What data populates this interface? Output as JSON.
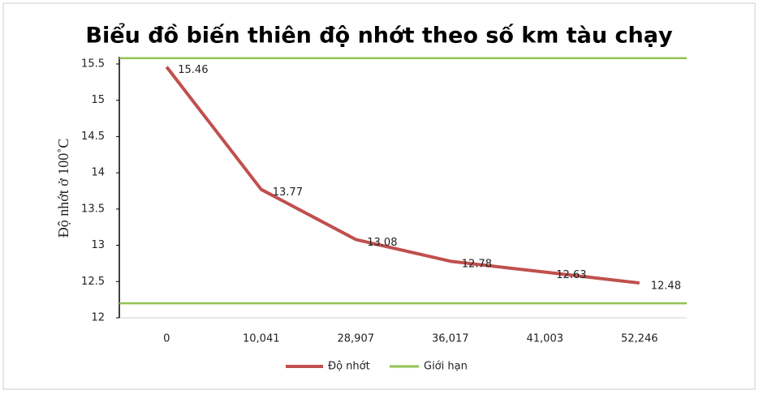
{
  "chart_data": {
    "type": "line",
    "title": "Biểu đồ biến thiên độ nhớt theo số km tàu chạy",
    "y_label": "Độ nhớt ở 100˚C",
    "categories": [
      "0",
      "10,041",
      "28,907",
      "36,017",
      "41,003",
      "52,246"
    ],
    "series": [
      {
        "name": "Độ nhớt",
        "color": "#c0504d",
        "values": [
          15.46,
          13.77,
          13.08,
          12.78,
          12.63,
          12.48
        ]
      }
    ],
    "limits": {
      "name": "Giới hạn",
      "color": "#92c353",
      "values": [
        15.58,
        12.2
      ]
    },
    "ylim": [
      12,
      15.6
    ],
    "yticks": [
      12,
      12.5,
      13,
      13.5,
      14,
      14.5,
      15,
      15.5
    ]
  }
}
